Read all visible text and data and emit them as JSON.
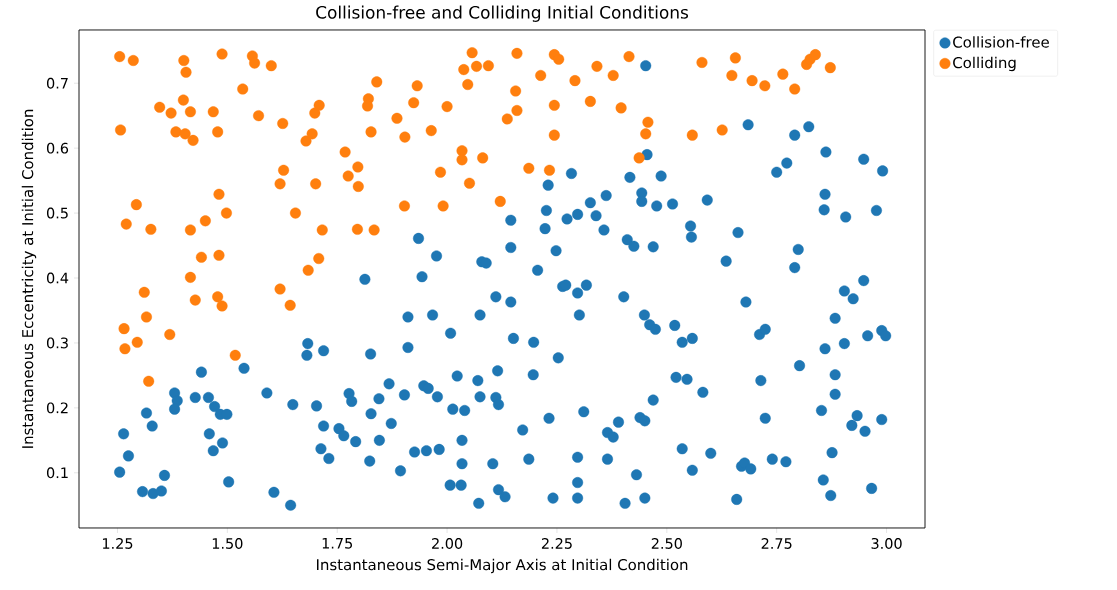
{
  "chart_data": {
    "type": "scatter",
    "title": "Collision-free and Colliding Initial Conditions",
    "xlabel": "Instantaneous Semi-Major Axis at Initial Condition",
    "ylabel": "Instantaneous Eccentricity at Initial Condition",
    "xlim": [
      1.1625,
      3.0875
    ],
    "ylim": [
      0.015,
      0.782
    ],
    "xticks": [
      {
        "value": 1.25,
        "label": "1.25"
      },
      {
        "value": 1.5,
        "label": "1.50"
      },
      {
        "value": 1.75,
        "label": "1.75"
      },
      {
        "value": 2.0,
        "label": "2.00"
      },
      {
        "value": 2.25,
        "label": "2.25"
      },
      {
        "value": 2.5,
        "label": "2.50"
      },
      {
        "value": 2.75,
        "label": "2.75"
      },
      {
        "value": 3.0,
        "label": "3.00"
      }
    ],
    "yticks": [
      0.1,
      0.2,
      0.3,
      0.4,
      0.5,
      0.6,
      0.7
    ],
    "legend": "top right",
    "marker": "circle",
    "grid": false,
    "series": [
      {
        "name": "Collision-free",
        "color": "#1f77b4",
        "x": [
          1.813,
          1.935,
          1.943,
          2.452,
          2.455,
          2.283,
          2.23,
          2.416,
          2.487,
          2.443,
          2.443,
          2.477,
          2.513,
          2.592,
          2.362,
          2.326,
          2.339,
          2.357,
          2.297,
          2.273,
          2.226,
          2.223,
          2.145,
          2.248,
          2.145,
          1.976,
          2.079,
          2.089,
          2.206,
          2.41,
          2.425,
          2.469,
          2.554,
          2.556,
          2.635,
          2.685,
          2.791,
          2.823,
          2.862,
          2.948,
          2.991,
          2.773,
          2.75,
          2.86,
          2.858,
          2.907,
          2.977,
          2.662,
          2.799,
          2.791,
          2.948,
          1.683,
          1.681,
          1.719,
          1.826,
          1.911,
          1.911,
          1.441,
          1.538,
          1.38,
          1.386,
          1.38,
          1.427,
          1.457,
          1.471,
          1.484,
          1.499,
          1.316,
          1.329,
          1.264,
          1.275,
          1.255,
          1.307,
          1.331,
          1.35,
          1.357,
          1.459,
          1.468,
          1.489,
          1.503,
          1.59,
          1.649,
          1.606,
          1.644,
          1.703,
          1.719,
          1.713,
          1.731,
          1.754,
          1.765,
          1.792,
          1.777,
          1.783,
          1.827,
          1.824,
          1.845,
          1.868,
          1.846,
          1.873,
          1.903,
          1.894,
          1.926,
          2.263,
          2.27,
          2.297,
          2.317,
          2.111,
          2.145,
          2.402,
          1.967,
          2.075,
          2.301,
          2.008,
          2.151,
          2.197,
          2.449,
          2.461,
          2.474,
          2.518,
          2.535,
          2.558,
          2.253,
          2.115,
          2.023,
          2.07,
          2.196,
          1.947,
          1.957,
          1.978,
          2.075,
          2.111,
          2.117,
          2.013,
          2.04,
          2.232,
          2.311,
          2.172,
          2.365,
          2.378,
          2.39,
          2.439,
          2.45,
          2.469,
          2.521,
          2.546,
          2.582,
          2.034,
          1.953,
          1.982,
          2.034,
          2.104,
          2.186,
          2.297,
          2.365,
          2.007,
          2.032,
          2.117,
          2.132,
          2.072,
          2.241,
          2.297,
          2.297,
          2.405,
          2.431,
          2.45,
          2.535,
          2.558,
          2.6,
          2.904,
          2.924,
          2.68,
          2.883,
          2.711,
          2.724,
          2.957,
          2.989,
          2.998,
          2.86,
          2.904,
          2.802,
          2.883,
          2.714,
          2.883,
          2.852,
          2.933,
          2.921,
          2.951,
          2.989,
          2.724,
          2.876,
          2.74,
          2.771,
          2.67,
          2.677,
          2.691,
          2.856,
          2.966,
          2.873,
          2.659
        ],
        "values": [
          0.398,
          0.461,
          0.402,
          0.727,
          0.59,
          0.561,
          0.543,
          0.555,
          0.557,
          0.531,
          0.518,
          0.511,
          0.514,
          0.52,
          0.527,
          0.516,
          0.496,
          0.474,
          0.498,
          0.491,
          0.504,
          0.476,
          0.489,
          0.442,
          0.447,
          0.434,
          0.425,
          0.423,
          0.412,
          0.459,
          0.449,
          0.448,
          0.48,
          0.463,
          0.426,
          0.636,
          0.62,
          0.633,
          0.594,
          0.583,
          0.565,
          0.577,
          0.563,
          0.529,
          0.505,
          0.494,
          0.504,
          0.47,
          0.444,
          0.416,
          0.396,
          0.299,
          0.281,
          0.288,
          0.283,
          0.34,
          0.293,
          0.255,
          0.261,
          0.223,
          0.211,
          0.198,
          0.216,
          0.216,
          0.202,
          0.19,
          0.19,
          0.192,
          0.172,
          0.16,
          0.126,
          0.101,
          0.071,
          0.068,
          0.072,
          0.096,
          0.16,
          0.134,
          0.146,
          0.086,
          0.223,
          0.205,
          0.07,
          0.05,
          0.203,
          0.172,
          0.137,
          0.122,
          0.168,
          0.157,
          0.148,
          0.222,
          0.21,
          0.191,
          0.118,
          0.214,
          0.237,
          0.15,
          0.176,
          0.22,
          0.103,
          0.132,
          0.387,
          0.389,
          0.377,
          0.389,
          0.371,
          0.363,
          0.371,
          0.343,
          0.343,
          0.343,
          0.315,
          0.307,
          0.301,
          0.343,
          0.328,
          0.321,
          0.327,
          0.301,
          0.307,
          0.277,
          0.257,
          0.249,
          0.242,
          0.251,
          0.234,
          0.23,
          0.217,
          0.217,
          0.216,
          0.205,
          0.198,
          0.196,
          0.184,
          0.194,
          0.166,
          0.162,
          0.155,
          0.178,
          0.185,
          0.18,
          0.212,
          0.247,
          0.244,
          0.224,
          0.15,
          0.134,
          0.136,
          0.114,
          0.114,
          0.121,
          0.124,
          0.121,
          0.081,
          0.081,
          0.074,
          0.063,
          0.053,
          0.061,
          0.085,
          0.061,
          0.053,
          0.097,
          0.061,
          0.137,
          0.104,
          0.13,
          0.38,
          0.368,
          0.363,
          0.338,
          0.313,
          0.321,
          0.311,
          0.319,
          0.311,
          0.291,
          0.299,
          0.265,
          0.251,
          0.242,
          0.221,
          0.196,
          0.188,
          0.173,
          0.164,
          0.182,
          0.184,
          0.131,
          0.121,
          0.117,
          0.11,
          0.115,
          0.106,
          0.089,
          0.076,
          0.065,
          0.059
        ]
      },
      {
        "name": "Colliding",
        "color": "#ff7f0e",
        "x": [
          1.255,
          1.286,
          1.257,
          1.401,
          1.406,
          1.488,
          1.557,
          1.562,
          1.6,
          1.535,
          1.346,
          1.372,
          1.4,
          1.416,
          1.468,
          1.571,
          1.383,
          1.404,
          1.422,
          1.478,
          1.626,
          1.679,
          1.693,
          1.699,
          1.709,
          1.821,
          1.819,
          1.84,
          1.827,
          1.886,
          1.904,
          1.924,
          1.932,
          1.768,
          1.797,
          1.775,
          1.798,
          1.628,
          1.62,
          1.701,
          1.903,
          1.293,
          1.27,
          1.326,
          1.416,
          1.45,
          1.481,
          1.498,
          1.655,
          1.716,
          1.796,
          1.834,
          1.441,
          1.481,
          1.708,
          1.684,
          1.416,
          1.62,
          2.057,
          2.038,
          2.067,
          2.094,
          2.047,
          2.159,
          2.244,
          2.254,
          2.213,
          2.156,
          2.159,
          2.137,
          2.341,
          2.378,
          2.414,
          2.291,
          2.326,
          2.244,
          2.396,
          2.457,
          2.452,
          2.244,
          2.437,
          2.558,
          2.626,
          2.58,
          2.0,
          1.964,
          2.034,
          2.034,
          2.081,
          1.985,
          2.051,
          2.186,
          2.233,
          1.991,
          2.121,
          2.656,
          2.648,
          2.694,
          2.723,
          2.764,
          2.791,
          2.818,
          2.826,
          2.838,
          2.872,
          1.311,
          1.427,
          1.478,
          1.488,
          1.643,
          1.265,
          1.267,
          1.295,
          1.316,
          1.369,
          1.518,
          1.321
        ],
        "values": [
          0.741,
          0.735,
          0.628,
          0.735,
          0.717,
          0.745,
          0.742,
          0.731,
          0.727,
          0.691,
          0.663,
          0.654,
          0.674,
          0.656,
          0.656,
          0.65,
          0.625,
          0.622,
          0.612,
          0.625,
          0.638,
          0.611,
          0.622,
          0.654,
          0.666,
          0.676,
          0.665,
          0.702,
          0.625,
          0.646,
          0.617,
          0.67,
          0.696,
          0.594,
          0.571,
          0.557,
          0.541,
          0.566,
          0.545,
          0.545,
          0.511,
          0.513,
          0.483,
          0.475,
          0.474,
          0.488,
          0.529,
          0.5,
          0.5,
          0.474,
          0.475,
          0.474,
          0.432,
          0.435,
          0.43,
          0.412,
          0.401,
          0.383,
          0.747,
          0.721,
          0.726,
          0.727,
          0.698,
          0.746,
          0.744,
          0.737,
          0.712,
          0.688,
          0.658,
          0.645,
          0.726,
          0.712,
          0.741,
          0.704,
          0.672,
          0.666,
          0.662,
          0.64,
          0.622,
          0.62,
          0.585,
          0.62,
          0.628,
          0.732,
          0.664,
          0.627,
          0.596,
          0.582,
          0.585,
          0.563,
          0.546,
          0.569,
          0.566,
          0.511,
          0.518,
          0.739,
          0.712,
          0.704,
          0.696,
          0.714,
          0.691,
          0.729,
          0.737,
          0.744,
          0.724,
          0.378,
          0.366,
          0.371,
          0.357,
          0.358,
          0.322,
          0.291,
          0.301,
          0.34,
          0.313,
          0.281,
          0.241
        ]
      }
    ]
  }
}
